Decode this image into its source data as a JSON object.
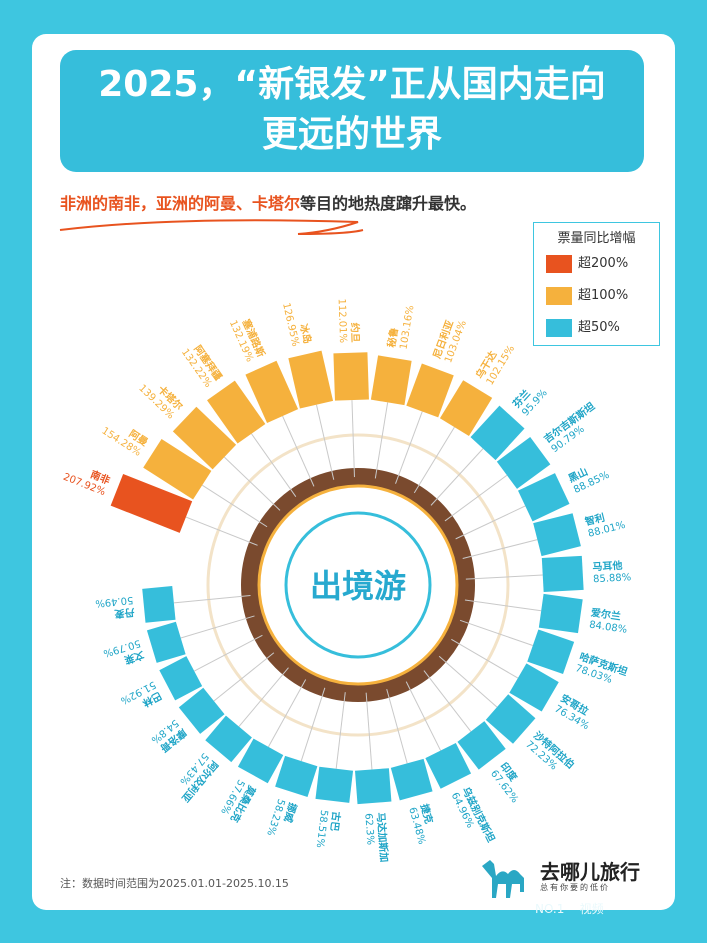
{
  "title_line1": "2025，“新银发”正从国内走向",
  "title_line2": "更远的世界",
  "subtitle": {
    "hl1": "非洲的南非，亚洲的阿曼、卡塔尔",
    "rest": "等目的地热度蹿升最快。"
  },
  "legend": {
    "title": "票量同比增幅",
    "items": [
      {
        "label": "超200%",
        "color": "#e8531f"
      },
      {
        "label": "超100%",
        "color": "#f5b13d"
      },
      {
        "label": "超50%",
        "color": "#36bedb"
      }
    ]
  },
  "center_label": "出境游",
  "note": "注：数据时间范围为2025.01.01-2025.10.15",
  "brand": {
    "name": "去哪儿旅行",
    "slogan": "总有你要的低价"
  },
  "watermark": "NO.1    视频",
  "chart_data": {
    "type": "bar",
    "layout": "radial",
    "categories": [
      "南非",
      "阿曼",
      "卡塔尔",
      "阿塞拜疆",
      "塞浦路斯",
      "冰岛",
      "约旦",
      "秘鲁",
      "尼日利亚",
      "乌干达",
      "芬兰",
      "吉尔吉斯斯坦",
      "黑山",
      "智利",
      "马耳他",
      "爱尔兰",
      "哈萨克斯坦",
      "安哥拉",
      "沙特阿拉伯",
      "印度",
      "乌兹别克斯坦",
      "捷克",
      "马达加斯加",
      "古巴",
      "挪威",
      "莫桑比克",
      "阿尔及利亚",
      "摩洛哥",
      "巴林",
      "文莱",
      "丹麦"
    ],
    "values": [
      207.92,
      154.28,
      139.29,
      132.22,
      132.19,
      126.95,
      112.01,
      103.16,
      103.04,
      102.15,
      95.9,
      90.79,
      88.85,
      88.01,
      85.88,
      84.08,
      78.03,
      76.34,
      72.23,
      67.62,
      64.96,
      63.48,
      62.3,
      58.51,
      58.23,
      57.66,
      57.43,
      54.8,
      51.92,
      50.79,
      50.49
    ],
    "value_labels": [
      "207.92%",
      "154.28%",
      "139.29%",
      "132.22%",
      "132.19%",
      "126.95%",
      "112.01%",
      "103.16%",
      "103.04%",
      "102.15%",
      "95.9%",
      "90.79%",
      "88.85%",
      "88.01%",
      "85.88%",
      "84.08%",
      "78.03%",
      "76.34%",
      "72.23%",
      "67.62%",
      "64.96%",
      "63.48%",
      "62.3%",
      "58.51%",
      "58.23%",
      "57.66%",
      "57.43%",
      "54.8%",
      "51.92%",
      "50.79%",
      "50.49%"
    ],
    "color_scale": {
      "超200%": "#e8531f",
      "超100%": "#f5b13d",
      "超50%": "#36bedb"
    }
  }
}
